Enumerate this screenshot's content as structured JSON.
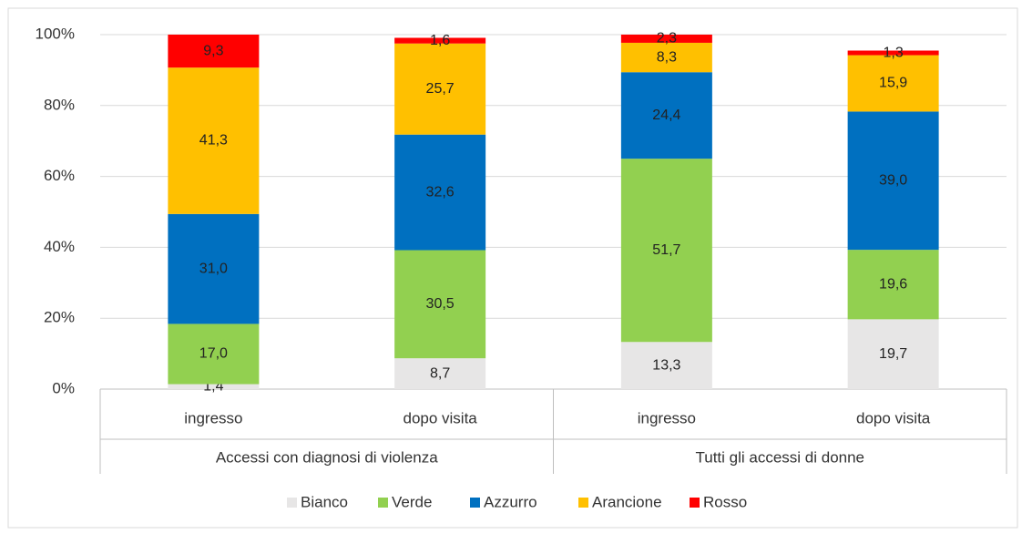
{
  "chart_data": {
    "type": "stacked_bar",
    "categories": [
      "ingresso",
      "dopo visita",
      "ingresso",
      "dopo visita"
    ],
    "groups": [
      "Accessi con diagnosi di violenza",
      "Tutti gli accessi di donne"
    ],
    "series": [
      {
        "name": "Bianco",
        "color": "#e7e6e6",
        "values": [
          1.4,
          8.7,
          13.3,
          19.7
        ],
        "value_labels": [
          "1,4",
          "8,7",
          "13,3",
          "19,7"
        ]
      },
      {
        "name": "Verde",
        "color": "#92d050",
        "values": [
          17.0,
          30.5,
          51.7,
          19.6
        ],
        "value_labels": [
          "17,0",
          "30,5",
          "51,7",
          "19,6"
        ]
      },
      {
        "name": "Azzurro",
        "color": "#0070c0",
        "values": [
          31.0,
          32.6,
          24.4,
          39.0
        ],
        "value_labels": [
          "31,0",
          "32,6",
          "24,4",
          "39,0"
        ]
      },
      {
        "name": "Arancione",
        "color": "#ffc000",
        "values": [
          41.3,
          25.7,
          8.3,
          15.9
        ],
        "value_labels": [
          "41,3",
          "25,7",
          "8,3",
          "15,9"
        ]
      },
      {
        "name": "Rosso",
        "color": "#ff0000",
        "values": [
          9.3,
          1.6,
          2.3,
          1.3
        ],
        "value_labels": [
          "9,3",
          "1,6",
          "2,3",
          "1,3"
        ]
      }
    ],
    "ylim": [
      0,
      100
    ],
    "yticks": [
      {
        "value": 0,
        "label": "0%"
      },
      {
        "value": 20,
        "label": "20%"
      },
      {
        "value": 40,
        "label": "40%"
      },
      {
        "value": 60,
        "label": "60%"
      },
      {
        "value": 80,
        "label": "80%"
      },
      {
        "value": 100,
        "label": "100%"
      }
    ],
    "grid": true,
    "legend": "bottom"
  }
}
